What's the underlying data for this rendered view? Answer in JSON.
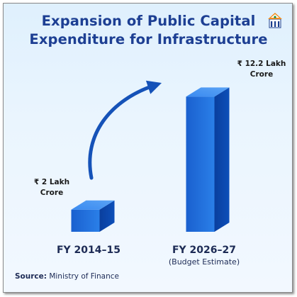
{
  "chart_data": {
    "type": "bar",
    "title": "Expansion of Public Capital Expenditure for Infrastructure",
    "title_lines": [
      "Expansion of Public Capital",
      "Expenditure for Infrastructure"
    ],
    "categories": [
      "FY 2014–15",
      "FY 2026–27"
    ],
    "category_notes": [
      "",
      "(Budget Estimate)"
    ],
    "values": [
      2,
      12.2
    ],
    "unit": "Lakh Crore",
    "value_labels": [
      [
        "₹ 2 Lakh",
        "Crore"
      ],
      [
        "₹ 12.2 Lakh",
        "Crore"
      ]
    ],
    "xlabel": "",
    "ylabel": "",
    "ylim": [
      0,
      13.5
    ],
    "grid": false,
    "annotation": "curved growth arrow"
  },
  "source": {
    "prefix": "Source:",
    "text": "Ministry of Finance"
  },
  "colors": {
    "title": "#1d3f93",
    "bar_front": "#1e6fdc",
    "bar_side": "#0a47a9",
    "bar_top": "#3d8ff0",
    "arrow": "#1552b8"
  },
  "logo": {
    "icon": "pib-logo-icon"
  }
}
